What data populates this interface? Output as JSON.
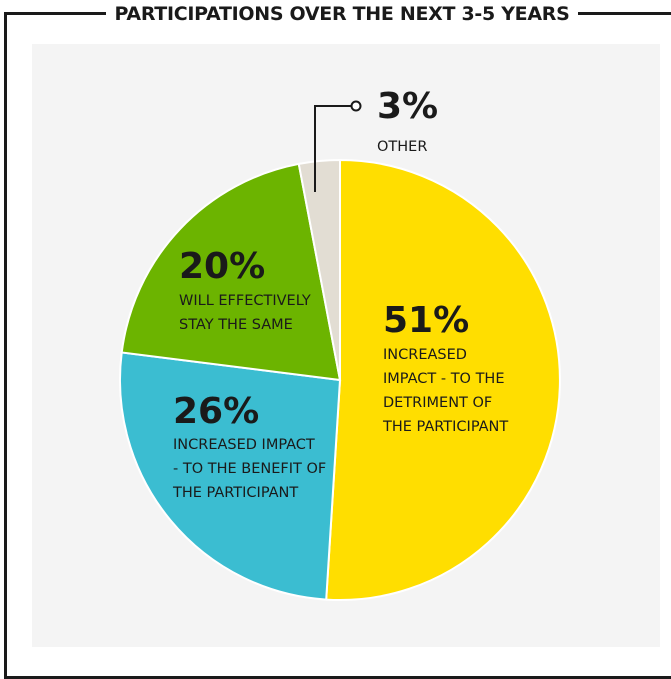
{
  "title": "PARTICIPATIONS OVER THE NEXT 3-5 YEARS",
  "chart_data": {
    "type": "pie",
    "title": "PARTICIPATIONS OVER THE NEXT 3-5 YEARS",
    "slices": [
      {
        "value": 51,
        "percent_label": "51%",
        "label_lines": [
          "INCREASED",
          "IMPACT - TO THE",
          "DETRIMENT OF",
          "THE PARTICIPANT"
        ],
        "color": "#ffde00"
      },
      {
        "value": 26,
        "percent_label": "26%",
        "label_lines": [
          "INCREASED IMPACT",
          "- TO THE BENEFIT OF",
          "THE PARTICIPANT"
        ],
        "color": "#3bbdd1"
      },
      {
        "value": 20,
        "percent_label": "20%",
        "label_lines": [
          "WILL EFFECTIVELY",
          "STAY THE SAME"
        ],
        "color": "#6cb400"
      },
      {
        "value": 3,
        "percent_label": "3%",
        "label_lines": [
          "OTHER"
        ],
        "color": "#e2ddd3"
      }
    ],
    "start": "12 o'clock",
    "direction": "clockwise",
    "legend": "none"
  }
}
